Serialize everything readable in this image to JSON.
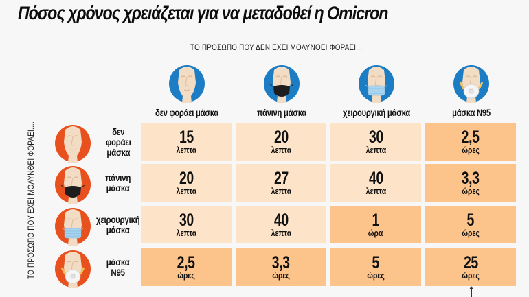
{
  "title": "Πόσος χρόνος χρειάζεται για να μεταδοθεί η Omicron",
  "top_caption": "ΤΟ ΠΡΟΣΩΠΟ ΠΟΥ ΔΕΝ ΕΧΕΙ ΜΟΛΥΝΘΕΙ ΦΟΡΑΕΙ...",
  "side_caption": "ΤΟ ΠΡΟΣΩΠΟ ΠΟΥ ΕΧΕΙ ΜΟΛΥΝΘΕΙ ΦΟΡΑΕΙ....",
  "colors": {
    "column_circle": "#1c7cc4",
    "row_circle": "#e8501e",
    "cell_light": "#fde3c8",
    "cell_dark": "#fcc38a"
  },
  "columns": [
    {
      "label": "δεν φοράει μάσκα",
      "mask": "none"
    },
    {
      "label": "πάνινη μάσκα",
      "mask": "cloth"
    },
    {
      "label": "χειρουργική μάσκα",
      "mask": "surgical"
    },
    {
      "label": "μάσκα N95",
      "mask": "n95"
    }
  ],
  "rows": [
    {
      "label_lines": [
        "δεν",
        "φοράει",
        "μάσκα"
      ],
      "mask": "none",
      "cells": [
        {
          "value": "15",
          "unit": "λεπτα",
          "shade": "light"
        },
        {
          "value": "20",
          "unit": "λεπτα",
          "shade": "light"
        },
        {
          "value": "30",
          "unit": "λεπτα",
          "shade": "light"
        },
        {
          "value": "2,5",
          "unit": "ώρες",
          "shade": "dark"
        }
      ]
    },
    {
      "label_lines": [
        "πάνινη",
        "μάσκα"
      ],
      "mask": "cloth",
      "cells": [
        {
          "value": "20",
          "unit": "λεπτα",
          "shade": "light"
        },
        {
          "value": "27",
          "unit": "λεπτα",
          "shade": "light"
        },
        {
          "value": "40",
          "unit": "λεπτα",
          "shade": "light"
        },
        {
          "value": "3,3",
          "unit": "ώρες",
          "shade": "dark"
        }
      ]
    },
    {
      "label_lines": [
        "χειρουργική",
        "μάσκα"
      ],
      "mask": "surgical",
      "cells": [
        {
          "value": "30",
          "unit": "λεπτα",
          "shade": "light"
        },
        {
          "value": "40",
          "unit": "λεπτα",
          "shade": "light"
        },
        {
          "value": "1",
          "unit": "ώρα",
          "shade": "dark"
        },
        {
          "value": "5",
          "unit": "ώρες",
          "shade": "dark"
        }
      ]
    },
    {
      "label_lines": [
        "μάσκα",
        "N95"
      ],
      "mask": "n95",
      "cells": [
        {
          "value": "2,5",
          "unit": "ώρες",
          "shade": "dark"
        },
        {
          "value": "3,3",
          "unit": "ώρες",
          "shade": "dark"
        },
        {
          "value": "5",
          "unit": "ώρες",
          "shade": "dark"
        },
        {
          "value": "25",
          "unit": "ώρες",
          "shade": "dark"
        }
      ]
    }
  ]
}
